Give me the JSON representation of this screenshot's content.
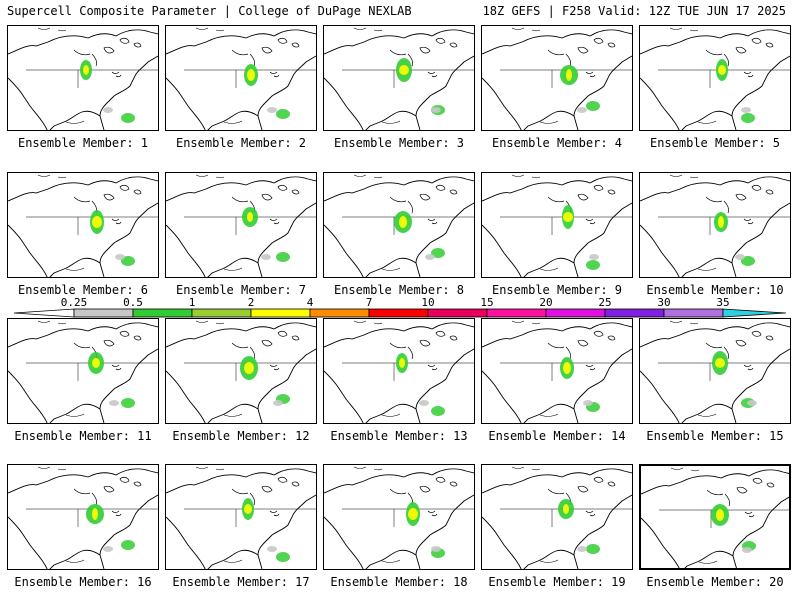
{
  "header": {
    "title": "Supercell Composite Parameter | College of DuPage NEXLAB",
    "run_info": "18Z GEFS | F258 Valid: 12Z TUE JUN 17 2025"
  },
  "colorbar": {
    "levels": [
      "0.25",
      "0.5",
      "1",
      "2",
      "4",
      "7",
      "10",
      "15",
      "20",
      "25",
      "30",
      "35"
    ],
    "colors": [
      "#c8c8c8",
      "#32cd32",
      "#9acd32",
      "#ffff00",
      "#ff8c00",
      "#ff0000",
      "#e8005a",
      "#ff10a0",
      "#e010e0",
      "#8020e0",
      "#b070e0",
      "#30d0e0"
    ]
  },
  "members": [
    {
      "label": "Ensemble Member: 1"
    },
    {
      "label": "Ensemble Member: 2"
    },
    {
      "label": "Ensemble Member: 3"
    },
    {
      "label": "Ensemble Member: 4"
    },
    {
      "label": "Ensemble Member: 5"
    },
    {
      "label": "Ensemble Member: 6"
    },
    {
      "label": "Ensemble Member: 7"
    },
    {
      "label": "Ensemble Member: 8"
    },
    {
      "label": "Ensemble Member: 9"
    },
    {
      "label": "Ensemble Member: 10"
    },
    {
      "label": "Ensemble Member: 11"
    },
    {
      "label": "Ensemble Member: 12"
    },
    {
      "label": "Ensemble Member: 13"
    },
    {
      "label": "Ensemble Member: 14"
    },
    {
      "label": "Ensemble Member: 15"
    },
    {
      "label": "Ensemble Member: 16"
    },
    {
      "label": "Ensemble Member: 17"
    },
    {
      "label": "Ensemble Member: 18"
    },
    {
      "label": "Ensemble Member: 19"
    },
    {
      "label": "Ensemble Member: 20",
      "selected": true
    }
  ]
}
